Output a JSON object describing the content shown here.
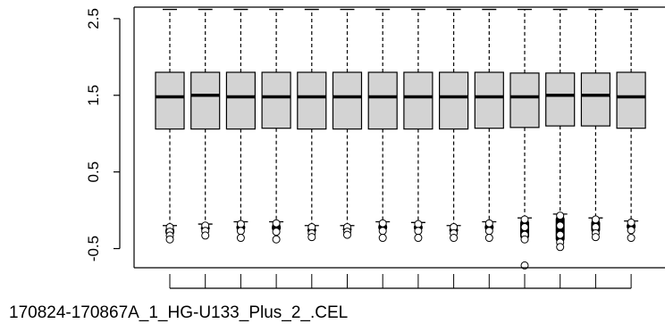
{
  "chart_data": {
    "type": "boxplot",
    "xlabel": "170824-170867A_1_HG-U133_Plus_2_.CEL",
    "ylabel": "",
    "ylim": [
      -0.75,
      2.65
    ],
    "y_ticks": [
      -0.5,
      0.5,
      1.5,
      2.5
    ],
    "y_tick_labels": [
      "-0.5",
      "0.5",
      "1.5",
      "2.5"
    ],
    "grid": false,
    "box_fill": "#d3d3d3",
    "line_color": "#000000",
    "boxes": [
      {
        "q1": 1.06,
        "median": 1.48,
        "q3": 1.8,
        "whisker_low": -0.2,
        "whisker_high": 2.62,
        "outliers": [
          -0.22,
          -0.28,
          -0.33,
          -0.38
        ]
      },
      {
        "q1": 1.06,
        "median": 1.5,
        "q3": 1.8,
        "whisker_low": -0.18,
        "whisker_high": 2.62,
        "outliers": [
          -0.2,
          -0.27,
          -0.33
        ]
      },
      {
        "q1": 1.06,
        "median": 1.48,
        "q3": 1.8,
        "whisker_low": -0.15,
        "whisker_high": 2.62,
        "outliers": [
          -0.18,
          -0.27,
          -0.36
        ]
      },
      {
        "q1": 1.07,
        "median": 1.48,
        "q3": 1.8,
        "whisker_low": -0.15,
        "whisker_high": 2.62,
        "outliers": [
          -0.17,
          -0.28,
          -0.38
        ]
      },
      {
        "q1": 1.06,
        "median": 1.48,
        "q3": 1.8,
        "whisker_low": -0.2,
        "whisker_high": 2.62,
        "outliers": [
          -0.22,
          -0.3,
          -0.35
        ]
      },
      {
        "q1": 1.06,
        "median": 1.48,
        "q3": 1.8,
        "whisker_low": -0.2,
        "whisker_high": 2.62,
        "outliers": [
          -0.22,
          -0.28,
          -0.32
        ]
      },
      {
        "q1": 1.06,
        "median": 1.48,
        "q3": 1.8,
        "whisker_low": -0.15,
        "whisker_high": 2.62,
        "outliers": [
          -0.17,
          -0.27,
          -0.36
        ]
      },
      {
        "q1": 1.06,
        "median": 1.48,
        "q3": 1.8,
        "whisker_low": -0.16,
        "whisker_high": 2.62,
        "outliers": [
          -0.18,
          -0.27,
          -0.36
        ]
      },
      {
        "q1": 1.06,
        "median": 1.48,
        "q3": 1.8,
        "whisker_low": -0.2,
        "whisker_high": 2.62,
        "outliers": [
          -0.22,
          -0.3,
          -0.36
        ]
      },
      {
        "q1": 1.07,
        "median": 1.48,
        "q3": 1.8,
        "whisker_low": -0.15,
        "whisker_high": 2.62,
        "outliers": [
          -0.17,
          -0.27,
          -0.36
        ]
      },
      {
        "q1": 1.08,
        "median": 1.48,
        "q3": 1.79,
        "whisker_low": -0.1,
        "whisker_high": 2.62,
        "outliers": [
          -0.12,
          -0.22,
          -0.32,
          -0.38,
          -0.72
        ]
      },
      {
        "q1": 1.1,
        "median": 1.5,
        "q3": 1.79,
        "whisker_low": -0.05,
        "whisker_high": 2.62,
        "outliers": [
          -0.07,
          -0.2,
          -0.32,
          -0.42,
          -0.48
        ]
      },
      {
        "q1": 1.1,
        "median": 1.5,
        "q3": 1.79,
        "whisker_low": -0.1,
        "whisker_high": 2.62,
        "outliers": [
          -0.12,
          -0.22,
          -0.3,
          -0.35
        ]
      },
      {
        "q1": 1.07,
        "median": 1.48,
        "q3": 1.8,
        "whisker_low": -0.14,
        "whisker_high": 2.62,
        "outliers": [
          -0.16,
          -0.26,
          -0.36
        ]
      }
    ]
  }
}
